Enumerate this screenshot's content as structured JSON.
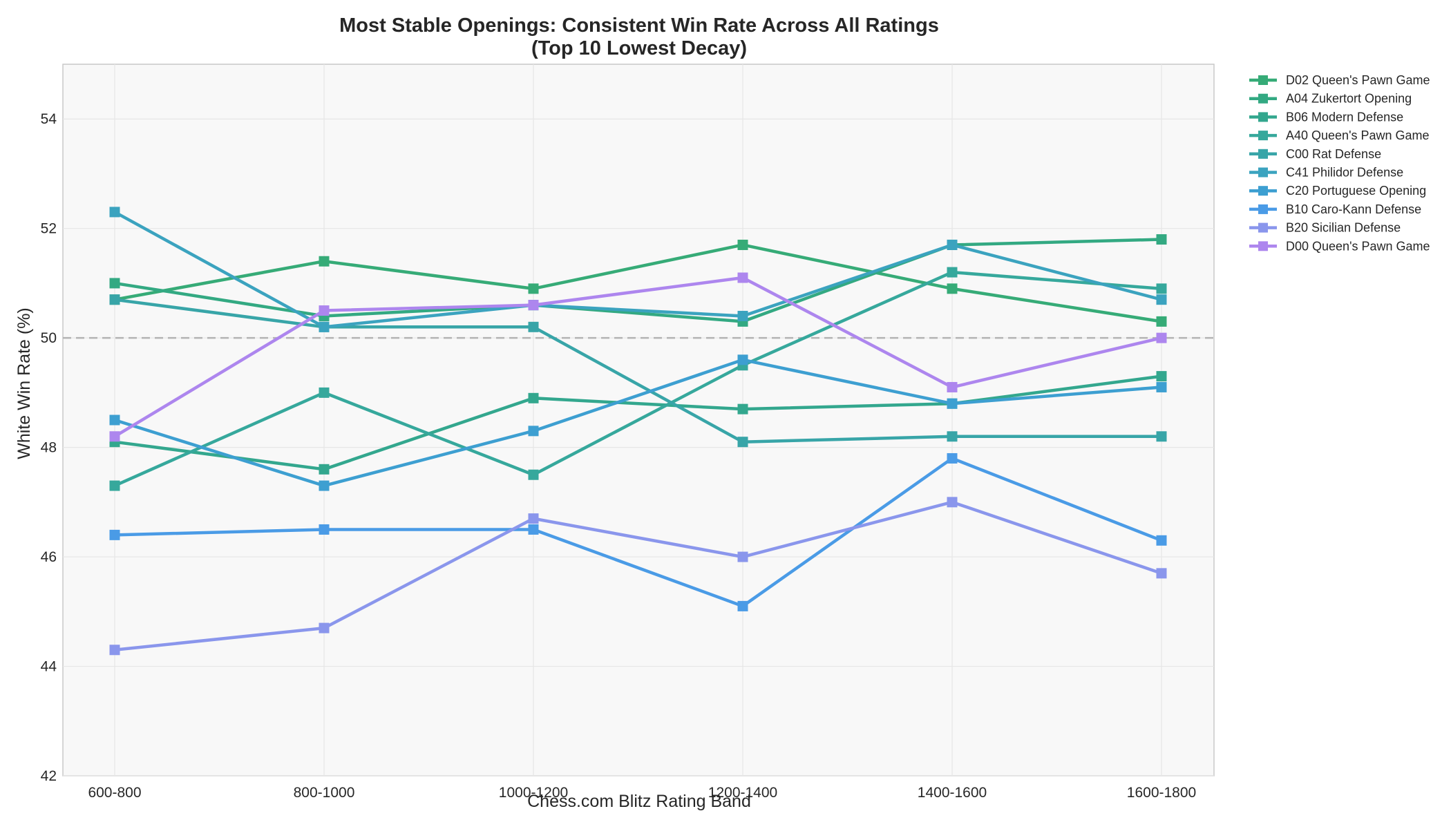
{
  "chart_data": {
    "type": "line",
    "title_line1": "Most Stable Openings: Consistent Win Rate Across All Ratings",
    "title_line2": "(Top 10 Lowest Decay)",
    "xlabel": "Chess.com Blitz Rating Band",
    "ylabel": "White Win Rate (%)",
    "categories": [
      "600-800",
      "800-1000",
      "1000-1200",
      "1200-1400",
      "1400-1600",
      "1600-1800"
    ],
    "ylim": [
      42,
      55
    ],
    "yticks": [
      42,
      44,
      46,
      48,
      50,
      52,
      54
    ],
    "reference_line": 50,
    "grid": true,
    "legend_position": "outside-top-right",
    "series": [
      {
        "name": "D02 Queen's Pawn Game",
        "color": "#36ab77",
        "values": [
          50.7,
          51.4,
          50.9,
          51.7,
          50.9,
          50.3
        ]
      },
      {
        "name": "A04 Zukertort Opening",
        "color": "#33a982",
        "values": [
          51.0,
          50.4,
          50.6,
          50.3,
          51.7,
          51.8
        ]
      },
      {
        "name": "B06 Modern Defense",
        "color": "#33a78e",
        "values": [
          48.1,
          47.6,
          48.9,
          48.7,
          48.8,
          49.3
        ]
      },
      {
        "name": "A40 Queen's Pawn Game",
        "color": "#36a89c",
        "values": [
          47.3,
          49.0,
          47.5,
          49.5,
          51.2,
          50.9
        ]
      },
      {
        "name": "C00 Rat Defense",
        "color": "#38a5a8",
        "values": [
          50.7,
          50.2,
          50.2,
          48.1,
          48.2,
          48.2
        ]
      },
      {
        "name": "C41 Philidor Defense",
        "color": "#3ba3bf",
        "values": [
          52.3,
          50.2,
          50.6,
          50.4,
          51.7,
          50.7
        ]
      },
      {
        "name": "C20 Portuguese Opening",
        "color": "#3d9fd1",
        "values": [
          48.5,
          47.3,
          48.3,
          49.6,
          48.8,
          49.1
        ]
      },
      {
        "name": "B10 Caro-Kann Defense",
        "color": "#4a9be6",
        "values": [
          46.4,
          46.5,
          46.5,
          45.1,
          47.8,
          46.3
        ]
      },
      {
        "name": "B20 Sicilian Defense",
        "color": "#8a96ec",
        "values": [
          44.3,
          44.7,
          46.7,
          46.0,
          47.0,
          45.7
        ]
      },
      {
        "name": "D00 Queen's Pawn Game",
        "color": "#ad86ee",
        "values": [
          48.2,
          50.5,
          50.6,
          51.1,
          49.1,
          50.0
        ]
      }
    ]
  }
}
